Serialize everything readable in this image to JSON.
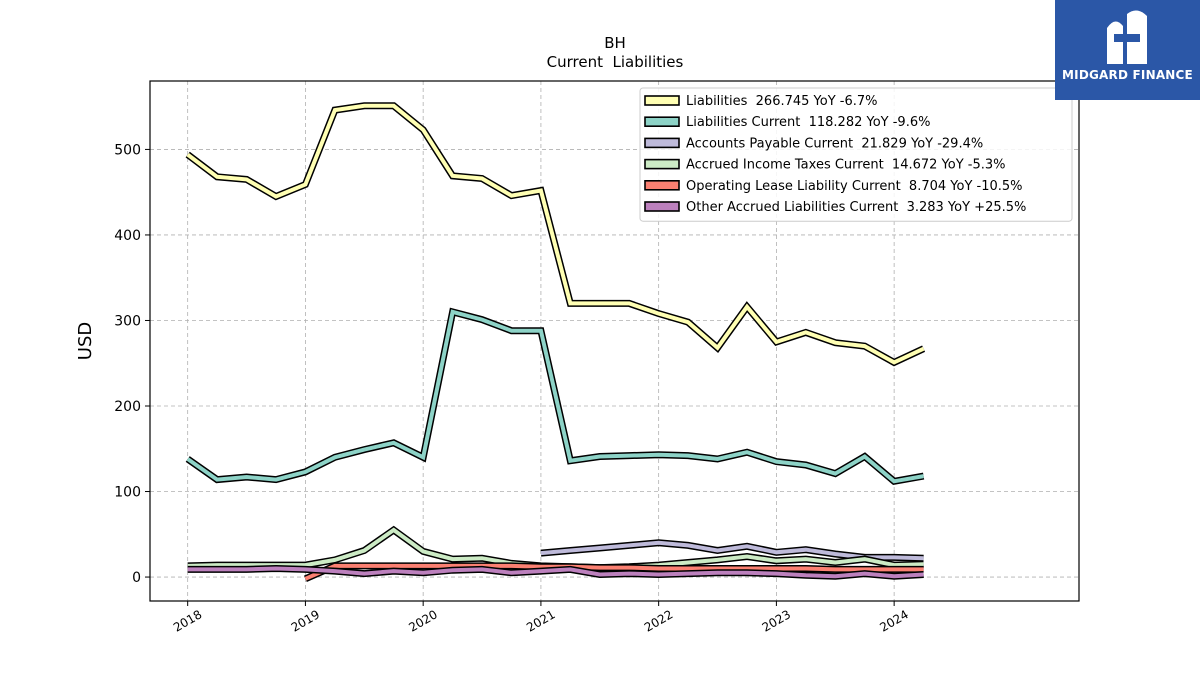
{
  "ticker": "BH",
  "title": "Current  Liabilities",
  "logo": {
    "text": "MIDGARD FINANCE",
    "icon": "midgard-logo-icon",
    "background": "#2b57a7"
  },
  "chart_data": {
    "type": "line",
    "ylabel": "USD",
    "xlabel": "",
    "ylim": [
      -28,
      580
    ],
    "xlim": [
      2017.68,
      2025.57
    ],
    "yticks": [
      0,
      100,
      200,
      300,
      400,
      500
    ],
    "xticks": [
      "2018",
      "2019",
      "2020",
      "2021",
      "2022",
      "2023",
      "2024"
    ],
    "grid": true,
    "legend_position": "top-right",
    "x": [
      "2018-01-01",
      "2018-04-01",
      "2018-07-01",
      "2018-10-01",
      "2019-01-01",
      "2019-04-01",
      "2019-07-01",
      "2019-10-01",
      "2020-01-01",
      "2020-04-01",
      "2020-07-01",
      "2020-10-01",
      "2021-01-01",
      "2021-04-01",
      "2021-07-01",
      "2021-10-01",
      "2022-01-01",
      "2022-04-01",
      "2022-07-01",
      "2022-10-01",
      "2023-01-01",
      "2023-04-01",
      "2023-07-01",
      "2023-10-01",
      "2024-01-01",
      "2024-04-01"
    ],
    "series": [
      {
        "name": "Liabilities",
        "legend": "Liabilities  266.745 YoY -6.7%",
        "color": "#ffffb3",
        "values": [
          494,
          468,
          465,
          445,
          459,
          546,
          551,
          551,
          523,
          469,
          466,
          446,
          452,
          320,
          320,
          320,
          308,
          298,
          268,
          316,
          275,
          286,
          274,
          270,
          251,
          267
        ]
      },
      {
        "name": "Liabilities Current",
        "legend": "Liabilities Current  118.282 YoY -9.6%",
        "color": "#8dd3c7",
        "values": [
          138,
          114,
          117,
          114,
          123,
          140,
          149,
          157,
          140,
          310,
          301,
          288,
          288,
          136,
          141,
          142,
          143,
          142,
          138,
          146,
          135,
          131,
          121,
          141,
          112,
          118
        ]
      },
      {
        "name": "Accounts Payable Current",
        "legend": "Accounts Payable Current  21.829 YoY -29.4%",
        "color": "#bebada",
        "values": [
          null,
          null,
          null,
          null,
          null,
          null,
          null,
          null,
          null,
          null,
          null,
          null,
          28,
          31,
          34,
          37,
          40,
          37,
          31,
          36,
          29,
          32,
          27,
          23,
          23,
          22
        ]
      },
      {
        "name": "Accrued Income Taxes Current",
        "legend": "Accrued Income Taxes Current  14.672 YoY -5.3%",
        "color": "#ccebc5",
        "values": [
          13,
          14,
          14,
          14,
          14,
          20,
          31,
          55,
          30,
          21,
          22,
          16,
          13,
          12,
          11,
          12,
          14,
          17,
          20,
          24,
          19,
          21,
          17,
          21,
          14,
          15
        ]
      },
      {
        "name": "Operating Lease Liability Current",
        "legend": "Operating Lease Liability Current  8.704 YoY -10.5%",
        "color": "#fb8072",
        "values": [
          null,
          null,
          null,
          null,
          -2,
          13,
          13,
          13,
          13,
          13,
          13,
          13,
          12,
          12,
          11,
          11,
          10,
          10,
          10,
          10,
          10,
          10,
          9,
          9,
          9,
          9
        ]
      },
      {
        "name": "Other Accrued Liabilities Current",
        "legend": "Other Accrued Liabilities Current  3.283 YoY +25.5%",
        "color": "#bc80bd",
        "values": [
          9,
          9,
          9,
          10,
          9,
          7,
          4,
          7,
          5,
          8,
          9,
          5,
          7,
          9,
          3,
          4,
          3,
          4,
          5,
          5,
          4,
          2,
          1,
          4,
          1,
          3
        ]
      }
    ]
  }
}
